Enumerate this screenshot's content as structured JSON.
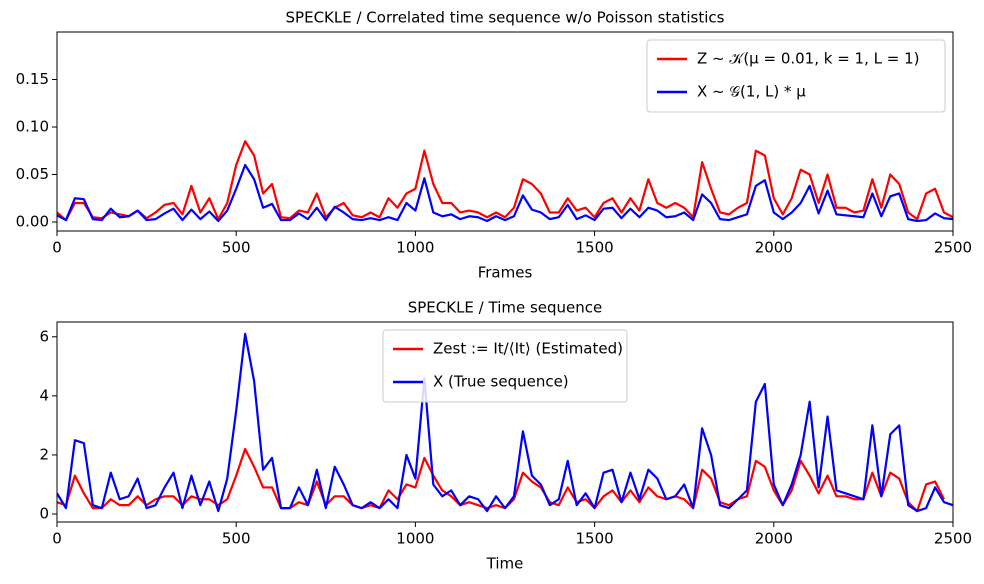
{
  "chart_data": [
    {
      "type": "line",
      "title": "SPECKLE / Correlated time sequence w/o Poisson statistics",
      "x_label": "Frames",
      "x": [
        0,
        25,
        50,
        75,
        100,
        125,
        150,
        175,
        200,
        225,
        250,
        275,
        300,
        325,
        350,
        375,
        400,
        425,
        450,
        475,
        500,
        525,
        550,
        575,
        600,
        625,
        650,
        675,
        700,
        725,
        750,
        775,
        800,
        825,
        850,
        875,
        900,
        925,
        950,
        975,
        1000,
        1025,
        1050,
        1075,
        1100,
        1125,
        1150,
        1175,
        1200,
        1225,
        1250,
        1275,
        1300,
        1325,
        1350,
        1375,
        1400,
        1425,
        1450,
        1475,
        1500,
        1525,
        1550,
        1575,
        1600,
        1625,
        1650,
        1675,
        1700,
        1725,
        1750,
        1775,
        1800,
        1825,
        1850,
        1875,
        1900,
        1925,
        1950,
        1975,
        2000,
        2025,
        2050,
        2075,
        2100,
        2125,
        2150,
        2175,
        2200,
        2225,
        2250,
        2275,
        2300,
        2325,
        2350,
        2375,
        2400,
        2425,
        2450,
        2475,
        2500
      ],
      "series": [
        {
          "name": "Z ~ 𝒦(μ = 0.01, k = 1, L = 1)",
          "color": "#ff0000",
          "values": [
            0.01,
            0.002,
            0.02,
            0.02,
            0.005,
            0.004,
            0.01,
            0.008,
            0.006,
            0.012,
            0.004,
            0.01,
            0.018,
            0.02,
            0.008,
            0.038,
            0.01,
            0.025,
            0.003,
            0.02,
            0.06,
            0.085,
            0.07,
            0.03,
            0.04,
            0.005,
            0.004,
            0.012,
            0.01,
            0.03,
            0.005,
            0.015,
            0.02,
            0.007,
            0.005,
            0.01,
            0.005,
            0.025,
            0.015,
            0.03,
            0.035,
            0.075,
            0.04,
            0.02,
            0.02,
            0.01,
            0.012,
            0.01,
            0.005,
            0.01,
            0.005,
            0.015,
            0.045,
            0.04,
            0.03,
            0.01,
            0.01,
            0.025,
            0.012,
            0.015,
            0.005,
            0.02,
            0.025,
            0.01,
            0.025,
            0.012,
            0.045,
            0.02,
            0.015,
            0.02,
            0.015,
            0.005,
            0.063,
            0.035,
            0.01,
            0.008,
            0.015,
            0.02,
            0.075,
            0.07,
            0.025,
            0.008,
            0.025,
            0.055,
            0.05,
            0.02,
            0.05,
            0.015,
            0.015,
            0.01,
            0.012,
            0.045,
            0.015,
            0.05,
            0.04,
            0.01,
            0.003,
            0.03,
            0.035,
            0.01,
            0.005
          ]
        },
        {
          "name": "X ~ 𝒢(1, L) * μ",
          "color": "#0000ff",
          "values": [
            0.007,
            0.002,
            0.025,
            0.024,
            0.003,
            0.002,
            0.014,
            0.005,
            0.006,
            0.012,
            0.002,
            0.003,
            0.009,
            0.014,
            0.002,
            0.013,
            0.003,
            0.011,
            0.001,
            0.012,
            0.035,
            0.06,
            0.045,
            0.015,
            0.019,
            0.002,
            0.002,
            0.009,
            0.003,
            0.015,
            0.002,
            0.016,
            0.01,
            0.003,
            0.002,
            0.004,
            0.002,
            0.005,
            0.002,
            0.02,
            0.012,
            0.046,
            0.01,
            0.006,
            0.008,
            0.003,
            0.006,
            0.005,
            0.001,
            0.006,
            0.002,
            0.006,
            0.028,
            0.013,
            0.01,
            0.003,
            0.005,
            0.018,
            0.003,
            0.007,
            0.002,
            0.014,
            0.015,
            0.004,
            0.014,
            0.005,
            0.015,
            0.012,
            0.005,
            0.006,
            0.01,
            0.002,
            0.029,
            0.02,
            0.003,
            0.002,
            0.005,
            0.008,
            0.038,
            0.044,
            0.01,
            0.003,
            0.01,
            0.02,
            0.038,
            0.009,
            0.033,
            0.008,
            0.007,
            0.006,
            0.005,
            0.03,
            0.006,
            0.027,
            0.03,
            0.003,
            0.001,
            0.002,
            0.009,
            0.004,
            0.003
          ]
        }
      ],
      "xlim": [
        0,
        2500
      ],
      "xticks": [
        0,
        500,
        1000,
        1500,
        2000,
        2500
      ],
      "ylim": [
        -0.0095,
        0.2
      ],
      "yticks": [
        {
          "value": 0,
          "label": "0.00"
        },
        {
          "value": 0.05,
          "label": "0.05"
        },
        {
          "value": 0.1,
          "label": "0.10"
        },
        0.15
      ],
      "legend": "upper right"
    },
    {
      "type": "line",
      "title": "SPECKLE / Time sequence",
      "x_label": "Time",
      "x": [
        0,
        25,
        50,
        75,
        100,
        125,
        150,
        175,
        200,
        225,
        250,
        275,
        300,
        325,
        350,
        375,
        400,
        425,
        450,
        475,
        500,
        525,
        550,
        575,
        600,
        625,
        650,
        675,
        700,
        725,
        750,
        775,
        800,
        825,
        850,
        875,
        900,
        925,
        950,
        975,
        1000,
        1025,
        1050,
        1075,
        1100,
        1125,
        1150,
        1175,
        1200,
        1225,
        1250,
        1275,
        1300,
        1325,
        1350,
        1375,
        1400,
        1425,
        1450,
        1475,
        1500,
        1525,
        1550,
        1575,
        1600,
        1625,
        1650,
        1675,
        1700,
        1725,
        1750,
        1775,
        1800,
        1825,
        1850,
        1875,
        1900,
        1925,
        1950,
        1975,
        2000,
        2025,
        2050,
        2075,
        2100,
        2125,
        2150,
        2175,
        2200,
        2225,
        2250,
        2275,
        2300,
        2325,
        2350,
        2375,
        2400,
        2425,
        2450,
        2475,
        2500
      ],
      "series": [
        {
          "name": "Zest := It/⟨It⟩ (Estimated)",
          "color": "#ff0000",
          "values": [
            0.4,
            0.3,
            1.3,
            0.7,
            0.2,
            0.2,
            0.5,
            0.3,
            0.3,
            0.6,
            0.3,
            0.5,
            0.6,
            0.6,
            0.3,
            0.6,
            0.5,
            0.5,
            0.3,
            0.5,
            1.3,
            2.2,
            1.6,
            0.9,
            0.9,
            0.2,
            0.2,
            0.4,
            0.3,
            1.1,
            0.3,
            0.6,
            0.6,
            0.3,
            0.2,
            0.3,
            0.2,
            0.8,
            0.5,
            1.0,
            0.9,
            1.9,
            1.3,
            0.8,
            0.6,
            0.3,
            0.4,
            0.3,
            0.2,
            0.3,
            0.2,
            0.5,
            1.4,
            1.1,
            0.9,
            0.4,
            0.3,
            0.9,
            0.4,
            0.5,
            0.2,
            0.6,
            0.8,
            0.4,
            0.8,
            0.4,
            0.9,
            0.6,
            0.5,
            0.6,
            0.5,
            0.2,
            1.5,
            1.2,
            0.4,
            0.3,
            0.5,
            0.6,
            1.8,
            1.6,
            0.8,
            0.3,
            0.8,
            1.8,
            1.3,
            0.7,
            1.3,
            0.6,
            0.6,
            0.5,
            0.5,
            1.4,
            0.6,
            1.4,
            1.2,
            0.4,
            0.1,
            1.0,
            1.1,
            0.5,
            null
          ]
        },
        {
          "name": "X (True sequence)",
          "color": "#0000ff",
          "values": [
            0.7,
            0.2,
            2.5,
            2.4,
            0.3,
            0.2,
            1.4,
            0.5,
            0.6,
            1.2,
            0.2,
            0.3,
            0.9,
            1.4,
            0.2,
            1.3,
            0.3,
            1.1,
            0.1,
            1.2,
            3.5,
            6.1,
            4.5,
            1.5,
            1.9,
            0.2,
            0.2,
            0.9,
            0.3,
            1.5,
            0.2,
            1.6,
            1.0,
            0.3,
            0.2,
            0.4,
            0.2,
            0.5,
            0.2,
            2.0,
            1.2,
            4.6,
            1.0,
            0.6,
            0.8,
            0.3,
            0.6,
            0.5,
            0.1,
            0.6,
            0.2,
            0.6,
            2.8,
            1.3,
            1.0,
            0.3,
            0.5,
            1.8,
            0.3,
            0.7,
            0.2,
            1.4,
            1.5,
            0.4,
            1.4,
            0.5,
            1.5,
            1.2,
            0.5,
            0.6,
            1.0,
            0.2,
            2.9,
            2.0,
            0.3,
            0.2,
            0.5,
            0.8,
            3.8,
            4.4,
            1.0,
            0.3,
            1.0,
            2.0,
            3.8,
            0.9,
            3.3,
            0.8,
            0.7,
            0.6,
            0.5,
            3.0,
            0.6,
            2.7,
            3.0,
            0.3,
            0.1,
            0.2,
            0.9,
            0.4,
            0.3
          ]
        }
      ],
      "xlim": [
        0,
        2500
      ],
      "xticks": [
        0,
        500,
        1000,
        1500,
        2000,
        2500
      ],
      "ylim": [
        -0.27,
        6.5
      ],
      "yticks": [
        0,
        2,
        4,
        6
      ],
      "legend": "upper center"
    }
  ]
}
